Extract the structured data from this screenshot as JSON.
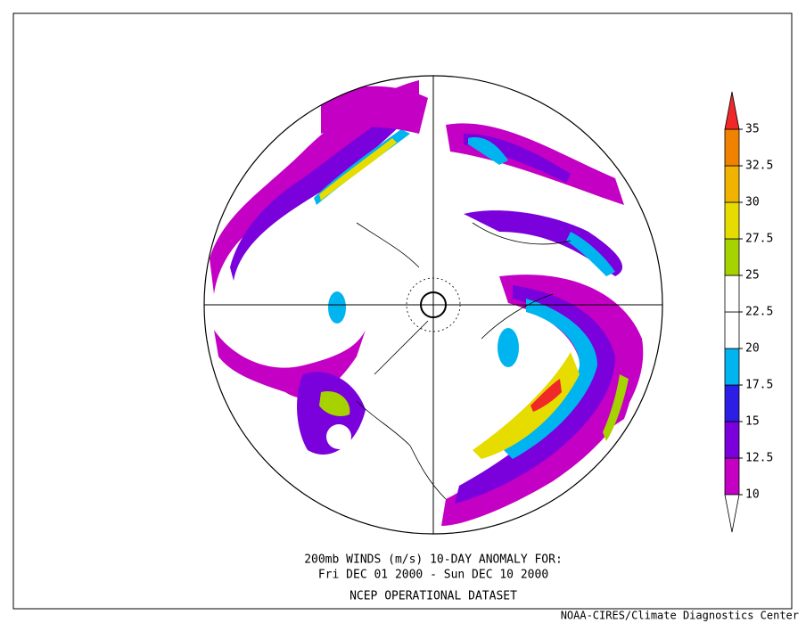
{
  "colorbar": {
    "levels": [
      10,
      12.5,
      15,
      17.5,
      20,
      22.5,
      25,
      27.5,
      30,
      32.5,
      35
    ],
    "colors": [
      "#c400c4",
      "#7a00dc",
      "#2d1ee6",
      "#00b4f0",
      "#ffffff",
      "#ffffff",
      "#a6d200",
      "#e6dc00",
      "#f0b400",
      "#f08200"
    ],
    "over_color": "#f02828",
    "under_color": "#ffffff"
  },
  "caption": {
    "lines": [
      "200mb WINDS (m/s)   10-DAY ANOMALY FOR:",
      "Fri DEC 01 2000 - Sun DEC 10 2000",
      "NCEP OPERATIONAL DATASET"
    ]
  },
  "credit": "NOAA-CIRES/Climate Diagnostics Center"
}
